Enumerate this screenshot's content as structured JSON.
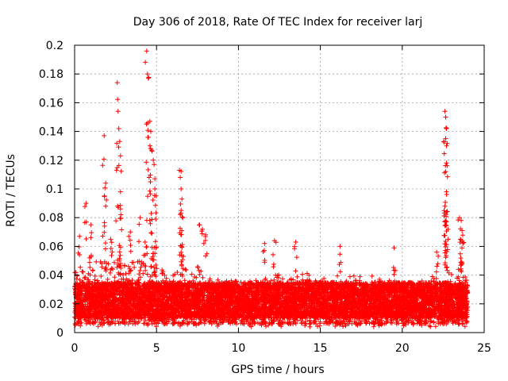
{
  "chart_data": {
    "type": "scatter",
    "title": "Day 306 of 2018, Rate Of TEC Index for receiver larj",
    "xlabel": "GPS time / hours",
    "ylabel": "ROTI / TECUs",
    "xlim": [
      0,
      25
    ],
    "ylim": [
      0,
      0.2
    ],
    "x_ticks": [
      0,
      5,
      10,
      15,
      20,
      25
    ],
    "x_tick_labels": [
      "0",
      "5",
      "10",
      "15",
      "20",
      "25"
    ],
    "y_ticks": [
      0,
      0.02,
      0.04,
      0.06,
      0.08,
      0.1,
      0.12,
      0.14,
      0.16,
      0.18,
      0.2
    ],
    "y_tick_labels": [
      "0",
      "0.02",
      "0.04",
      "0.06",
      "0.08",
      "0.1",
      "0.12",
      "0.14",
      "0.16",
      "0.18",
      "0.2"
    ],
    "grid": true,
    "marker": "plus",
    "series_color": "#ff0000",
    "data_coverage_hours": [
      0,
      24
    ],
    "baseline_band": [
      0.01,
      0.035
    ],
    "peaks": [
      {
        "x": 0.3,
        "y": 0.067
      },
      {
        "x": 0.7,
        "y": 0.09
      },
      {
        "x": 1.0,
        "y": 0.075
      },
      {
        "x": 1.8,
        "y": 0.137
      },
      {
        "x": 1.9,
        "y": 0.104
      },
      {
        "x": 1.9,
        "y": 0.088
      },
      {
        "x": 2.2,
        "y": 0.065
      },
      {
        "x": 2.6,
        "y": 0.174
      },
      {
        "x": 2.65,
        "y": 0.154
      },
      {
        "x": 2.7,
        "y": 0.142
      },
      {
        "x": 2.75,
        "y": 0.133
      },
      {
        "x": 2.8,
        "y": 0.123
      },
      {
        "x": 2.8,
        "y": 0.098
      },
      {
        "x": 2.8,
        "y": 0.086
      },
      {
        "x": 3.4,
        "y": 0.07
      },
      {
        "x": 4.0,
        "y": 0.08
      },
      {
        "x": 4.3,
        "y": 0.063
      },
      {
        "x": 4.4,
        "y": 0.196
      },
      {
        "x": 4.45,
        "y": 0.18
      },
      {
        "x": 4.5,
        "y": 0.177
      },
      {
        "x": 4.6,
        "y": 0.147
      },
      {
        "x": 4.65,
        "y": 0.14
      },
      {
        "x": 4.6,
        "y": 0.13
      },
      {
        "x": 4.7,
        "y": 0.127
      },
      {
        "x": 4.8,
        "y": 0.12
      },
      {
        "x": 4.85,
        "y": 0.117
      },
      {
        "x": 4.9,
        "y": 0.107
      },
      {
        "x": 4.9,
        "y": 0.1
      },
      {
        "x": 4.95,
        "y": 0.079
      },
      {
        "x": 6.4,
        "y": 0.113
      },
      {
        "x": 6.45,
        "y": 0.108
      },
      {
        "x": 6.5,
        "y": 0.1
      },
      {
        "x": 6.55,
        "y": 0.093
      },
      {
        "x": 6.5,
        "y": 0.085
      },
      {
        "x": 6.6,
        "y": 0.08
      },
      {
        "x": 7.6,
        "y": 0.075
      },
      {
        "x": 7.8,
        "y": 0.072
      },
      {
        "x": 8.0,
        "y": 0.068
      },
      {
        "x": 11.6,
        "y": 0.062
      },
      {
        "x": 12.2,
        "y": 0.064
      },
      {
        "x": 13.5,
        "y": 0.063
      },
      {
        "x": 16.2,
        "y": 0.06
      },
      {
        "x": 19.5,
        "y": 0.059
      },
      {
        "x": 22.1,
        "y": 0.056
      },
      {
        "x": 22.6,
        "y": 0.154
      },
      {
        "x": 22.65,
        "y": 0.15
      },
      {
        "x": 22.7,
        "y": 0.142
      },
      {
        "x": 22.65,
        "y": 0.135
      },
      {
        "x": 22.7,
        "y": 0.13
      },
      {
        "x": 22.7,
        "y": 0.118
      },
      {
        "x": 22.65,
        "y": 0.112
      },
      {
        "x": 22.7,
        "y": 0.098
      },
      {
        "x": 22.6,
        "y": 0.088
      },
      {
        "x": 22.7,
        "y": 0.077
      },
      {
        "x": 22.8,
        "y": 0.065
      },
      {
        "x": 23.5,
        "y": 0.08
      },
      {
        "x": 23.6,
        "y": 0.078
      },
      {
        "x": 23.65,
        "y": 0.071
      },
      {
        "x": 23.55,
        "y": 0.065
      },
      {
        "x": 23.7,
        "y": 0.062
      }
    ],
    "activity_envelope": [
      {
        "x": 0,
        "y": 0.045
      },
      {
        "x": 1,
        "y": 0.055
      },
      {
        "x": 2,
        "y": 0.05
      },
      {
        "x": 3,
        "y": 0.048
      },
      {
        "x": 4,
        "y": 0.05
      },
      {
        "x": 5,
        "y": 0.045
      },
      {
        "x": 6,
        "y": 0.042
      },
      {
        "x": 7,
        "y": 0.045
      },
      {
        "x": 8,
        "y": 0.04
      },
      {
        "x": 9,
        "y": 0.036
      },
      {
        "x": 10,
        "y": 0.036
      },
      {
        "x": 11,
        "y": 0.038
      },
      {
        "x": 12,
        "y": 0.042
      },
      {
        "x": 13,
        "y": 0.04
      },
      {
        "x": 14,
        "y": 0.042
      },
      {
        "x": 15,
        "y": 0.038
      },
      {
        "x": 16,
        "y": 0.04
      },
      {
        "x": 17,
        "y": 0.04
      },
      {
        "x": 18,
        "y": 0.04
      },
      {
        "x": 19,
        "y": 0.038
      },
      {
        "x": 20,
        "y": 0.034
      },
      {
        "x": 21,
        "y": 0.035
      },
      {
        "x": 22,
        "y": 0.04
      },
      {
        "x": 23,
        "y": 0.042
      },
      {
        "x": 24,
        "y": 0.04
      }
    ]
  }
}
